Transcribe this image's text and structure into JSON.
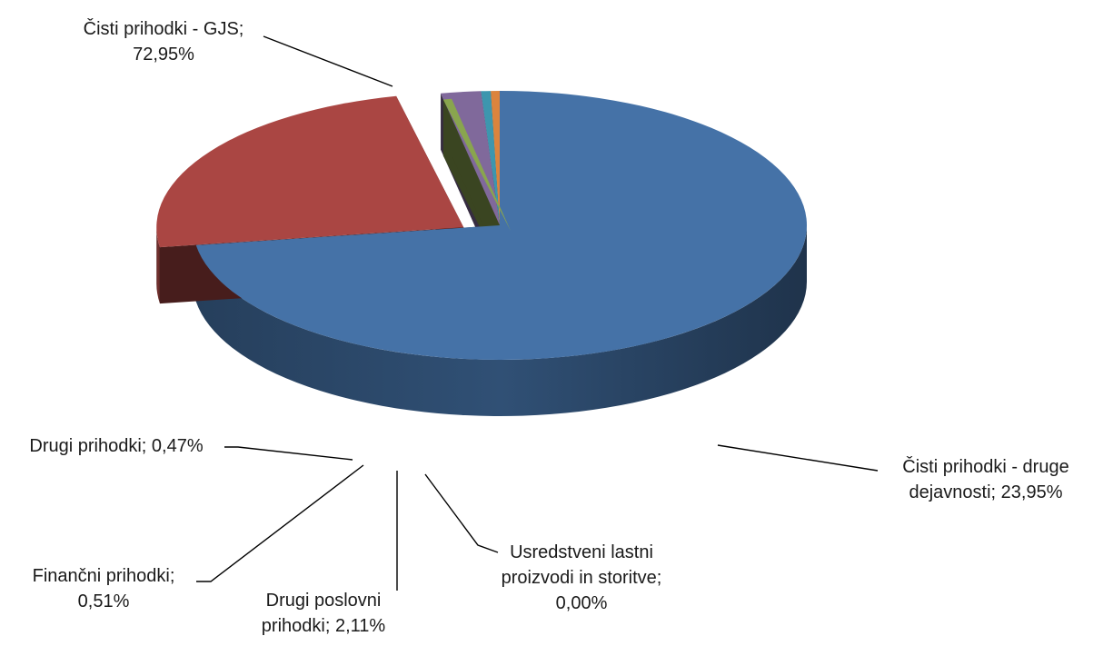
{
  "chart_data": {
    "type": "pie",
    "style": "3d-exploded",
    "legend": "none",
    "slices": [
      {
        "label": "Čisti prihodki - GJS",
        "value": 72.95,
        "display": "72,95%",
        "color": "#4572A7"
      },
      {
        "label": "Čisti prihodki - druge dejavnosti",
        "value": 23.95,
        "display": "23,95%",
        "color": "#AA4643"
      },
      {
        "label": "Usredstveni lastni proizvodi in storitve",
        "value": 0.0,
        "display": "0,00%",
        "color": "#89A54E"
      },
      {
        "label": "Drugi poslovni prihodki",
        "value": 2.11,
        "display": "2,11%",
        "color": "#80699B"
      },
      {
        "label": "Finančni prihodki",
        "value": 0.51,
        "display": "0,51%",
        "color": "#3D96AE"
      },
      {
        "label": "Drugi prihodki",
        "value": 0.47,
        "display": "0,47%",
        "color": "#DB843D"
      }
    ],
    "data_labels": [
      {
        "lines": [
          "Čisti prihodki - GJS;",
          "72,95%"
        ]
      },
      {
        "lines": [
          "Čisti prihodki - druge",
          "dejavnosti; 23,95%"
        ]
      },
      {
        "lines": [
          "Usredstveni lastni",
          "proizvodi in storitve;",
          "0,00%"
        ]
      },
      {
        "lines": [
          "Drugi poslovni",
          "prihodki; 2,11%"
        ]
      },
      {
        "lines": [
          "Finančni prihodki;",
          "0,51%"
        ]
      },
      {
        "lines": [
          "Drugi prihodki; 0,47%"
        ]
      }
    ]
  }
}
